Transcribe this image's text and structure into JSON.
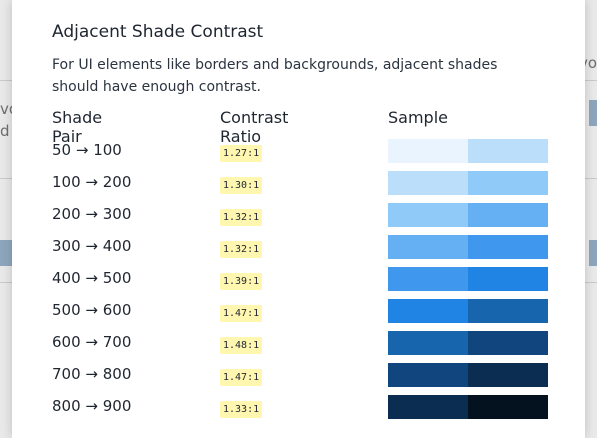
{
  "background": {
    "fragments": [
      "vo",
      "d t"
    ],
    "right_fragment": "vo"
  },
  "modal": {
    "title": "Adjacent Shade Contrast",
    "description": "For UI elements like borders and backgrounds, adjacent shades should have enough contrast.",
    "columns": [
      "Shade Pair",
      "Contrast Ratio",
      "Sample"
    ],
    "rows": [
      {
        "pair": "50 → 100",
        "ratio": "1.27:1",
        "colors": [
          "#e9f4fe",
          "#bbdefb"
        ]
      },
      {
        "pair": "100 → 200",
        "ratio": "1.30:1",
        "colors": [
          "#bbdefb",
          "#90caf9"
        ]
      },
      {
        "pair": "200 → 300",
        "ratio": "1.32:1",
        "colors": [
          "#90caf9",
          "#64b0f3"
        ]
      },
      {
        "pair": "300 → 400",
        "ratio": "1.32:1",
        "colors": [
          "#64b0f3",
          "#3f98ee"
        ]
      },
      {
        "pair": "400 → 500",
        "ratio": "1.39:1",
        "colors": [
          "#3f98ee",
          "#1f84e4"
        ]
      },
      {
        "pair": "500 → 600",
        "ratio": "1.47:1",
        "colors": [
          "#1f84e4",
          "#1665ad"
        ]
      },
      {
        "pair": "600 → 700",
        "ratio": "1.48:1",
        "colors": [
          "#1665ad",
          "#10467d"
        ]
      },
      {
        "pair": "700 → 800",
        "ratio": "1.47:1",
        "colors": [
          "#10467d",
          "#0b2d52"
        ]
      },
      {
        "pair": "800 → 900",
        "ratio": "1.33:1",
        "colors": [
          "#0b2d52",
          "#04111f"
        ]
      }
    ]
  }
}
